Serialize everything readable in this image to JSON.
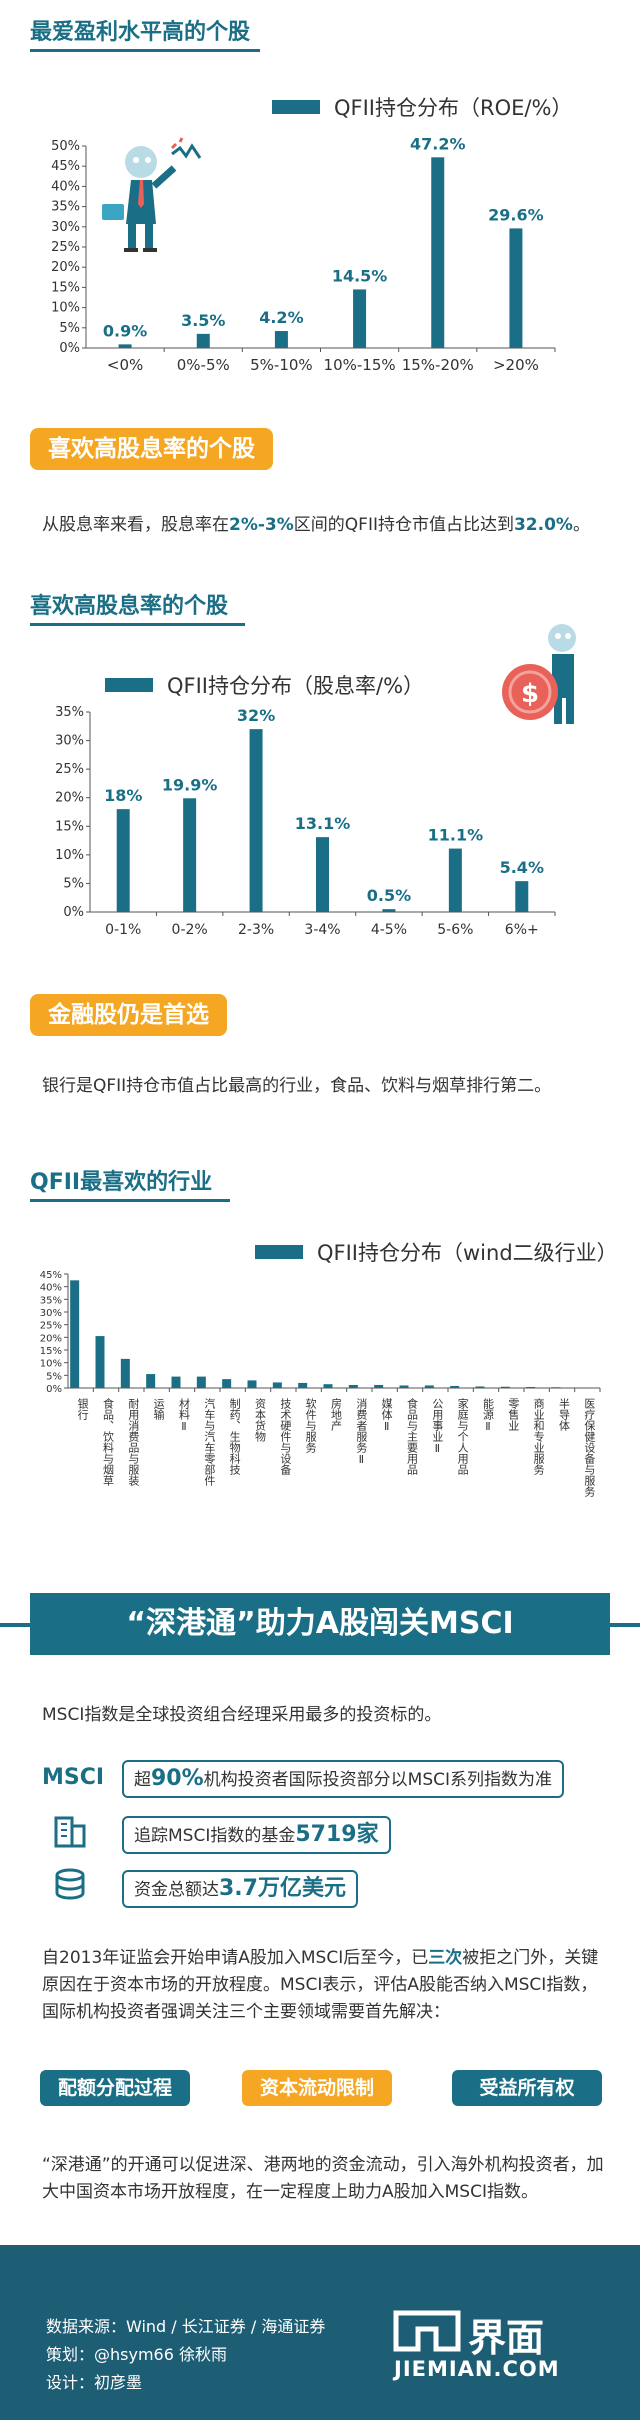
{
  "section1": {
    "title": "最爱盈利水平高的个股"
  },
  "section2": {
    "tag": "喜欢高股息率的个股",
    "para_pre": "从股息率来看，股息率在",
    "para_hl": "2%-3%",
    "para_mid": "区间的QFII持仓市值占比达到",
    "para_hl2": "32.0%",
    "para_end": "。",
    "title": "喜欢高股息率的个股"
  },
  "section3": {
    "tag": "金融股仍是首选",
    "para": "银行是QFII持仓市值占比最高的行业，食品、饮料与烟草排行第二。",
    "title": "QFII最喜欢的行业"
  },
  "section4": {
    "banner": "“深港通”助力A股闯关MSCI",
    "intro": "MSCI指数是全球投资组合经理采用最多的投资标的。",
    "msci_label": "MSCI",
    "row1_pre": "超",
    "row1_hl": "90%",
    "row1_post": "机构投资者国际投资部分以MSCI系列指数为准",
    "row2_pre": "追踪MSCI指数的基金",
    "row2_hl": "5719家",
    "row3_pre": "资金总额达",
    "row3_hl": "3.7万亿美元",
    "para1_pre": "自2013年证监会开始申请A股加入MSCI后至今，已",
    "para1_hl": "三次",
    "para1_post": "被拒之门外，关键原因在于资本市场的开放程度。MSCI表示，评估A股能否纳入MSCI指数，国际机构投资者强调关注三个主要领域需要首先解决：",
    "pills": [
      "配额分配过程",
      "资本流动限制",
      "受益所有权"
    ],
    "para2": "“深港通”的开通可以促进深、港两地的资金流动，引入海外机构投资者，加大中国资本市场开放程度，在一定程度上助力A股加入MSCI指数。"
  },
  "footer": {
    "source": "数据来源：Wind / 长江证券 / 海通证券",
    "plan": "策划：@hsym66 徐秋雨",
    "design": "设计：初彦墨",
    "logo_cn": "界面",
    "logo_en": "JIEMIAN.COM"
  },
  "colors": {
    "teal": "#1a6f86",
    "orange": "#f5a623",
    "red": "#e8625a",
    "footer": "#1e5e74"
  },
  "chart_data": [
    {
      "type": "bar",
      "legend": "QFII持仓分布（ROE/%）",
      "categories": [
        "<0%",
        "0%-5%",
        "5%-10%",
        "10%-15%",
        "15%-20%",
        ">20%"
      ],
      "values": [
        0.9,
        3.5,
        4.2,
        14.5,
        47.2,
        29.6
      ],
      "value_labels": [
        "0.9%",
        "3.5%",
        "4.2%",
        "14.5%",
        "47.2%",
        "29.6%"
      ],
      "ylim": [
        0,
        50
      ],
      "yticks": [
        "0%",
        "5%",
        "10%",
        "15%",
        "20%",
        "25%",
        "30%",
        "35%",
        "40%",
        "45%",
        "50%"
      ]
    },
    {
      "type": "bar",
      "legend": "QFII持仓分布（股息率/%）",
      "categories": [
        "0-1%",
        "0-2%",
        "2-3%",
        "3-4%",
        "4-5%",
        "5-6%",
        "6%+"
      ],
      "values": [
        18,
        19.9,
        32,
        13.1,
        0.5,
        11.1,
        5.4
      ],
      "value_labels": [
        "18%",
        "19.9%",
        "32%",
        "13.1%",
        "0.5%",
        "11.1%",
        "5.4%"
      ],
      "ylim": [
        0,
        35
      ],
      "yticks": [
        "0%",
        "5%",
        "10%",
        "15%",
        "20%",
        "25%",
        "30%",
        "35%"
      ]
    },
    {
      "type": "bar",
      "legend": "QFII持仓分布（wind二级行业）",
      "categories": [
        "银行",
        "食品、饮料与烟草",
        "耐用消费品与服装",
        "运输",
        "材料Ⅱ",
        "汽车与汽车零部件",
        "制药、生物科技",
        "资本货物",
        "技术硬件与设备",
        "软件与服务",
        "房地产",
        "消费者服务Ⅱ",
        "媒体Ⅱ",
        "食品与主要用品",
        "公用事业Ⅱ",
        "家庭与个人用品",
        "能源Ⅱ",
        "零售业",
        "商业和专业服务",
        "半导体",
        "医疗保健设备与服务"
      ],
      "values": [
        42.5,
        20.5,
        11.5,
        5.5,
        4.5,
        4.5,
        3.5,
        3.0,
        2.2,
        2.0,
        1.5,
        1.2,
        1.2,
        1.0,
        1.0,
        0.8,
        0.6,
        0.5,
        0.4,
        0.3,
        0.2
      ],
      "ylim": [
        0,
        45
      ],
      "yticks": [
        "0%",
        "5%",
        "10%",
        "15%",
        "20%",
        "25%",
        "30%",
        "35%",
        "40%",
        "45%"
      ]
    }
  ]
}
